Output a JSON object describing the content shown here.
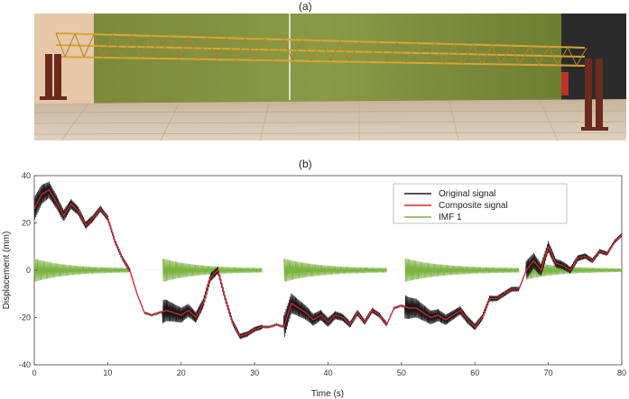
{
  "panels": {
    "a_label": "(a)",
    "b_label": "(b)"
  },
  "chart_data": {
    "type": "line",
    "title": "",
    "xlabel": "Time (s)",
    "ylabel": "Displacement (mm)",
    "xlim": [
      0,
      80
    ],
    "ylim": [
      -40,
      40
    ],
    "xticks": [
      "0",
      "10",
      "20",
      "30",
      "40",
      "50",
      "60",
      "70",
      "80"
    ],
    "yticks": [
      "40",
      "20",
      "0",
      "-20",
      "-40"
    ],
    "legend_position": "top-right",
    "colors": {
      "original": "#1a1a1a",
      "composite": "#d62728",
      "imf": "#7cb342"
    },
    "series": [
      {
        "name": "Original signal",
        "x": [
          0,
          1,
          2,
          3,
          4,
          5,
          6,
          7,
          8,
          9,
          10,
          11,
          12,
          13,
          14,
          15,
          16,
          17,
          18,
          19,
          20,
          21,
          22,
          23,
          24,
          25,
          26,
          27,
          28,
          29,
          30,
          31,
          32,
          33,
          34,
          35,
          36,
          37,
          38,
          39,
          40,
          41,
          42,
          43,
          44,
          45,
          46,
          47,
          48,
          49,
          50,
          51,
          52,
          53,
          54,
          55,
          56,
          57,
          58,
          59,
          60,
          61,
          62,
          63,
          64,
          65,
          66,
          67,
          68,
          69,
          70,
          71,
          72,
          73,
          74,
          75,
          76,
          77,
          78,
          79,
          80
        ],
        "values": [
          26,
          32,
          34,
          29,
          23,
          28,
          25,
          19,
          22,
          26,
          22,
          12,
          5,
          0,
          -10,
          -18,
          -19,
          -18,
          -17,
          -18,
          -19,
          -17,
          -20,
          -14,
          -3,
          0,
          -12,
          -22,
          -28,
          -27,
          -25,
          -24,
          -24,
          -23,
          -24,
          -14,
          -16,
          -18,
          -21,
          -19,
          -22,
          -19,
          -20,
          -23,
          -18,
          -22,
          -17,
          -19,
          -23,
          -16,
          -15,
          -16,
          -16,
          -18,
          -20,
          -19,
          -21,
          -19,
          -17,
          -21,
          -24,
          -20,
          -12,
          -12,
          -10,
          -8,
          -8,
          0,
          4,
          0,
          10,
          3,
          2,
          0,
          5,
          6,
          4,
          8,
          7,
          12,
          15
        ]
      },
      {
        "name": "Composite signal",
        "x": [
          0,
          1,
          2,
          3,
          4,
          5,
          6,
          7,
          8,
          9,
          10,
          11,
          12,
          13,
          14,
          15,
          16,
          17,
          18,
          19,
          20,
          21,
          22,
          23,
          24,
          25,
          26,
          27,
          28,
          29,
          30,
          31,
          32,
          33,
          34,
          35,
          36,
          37,
          38,
          39,
          40,
          41,
          42,
          43,
          44,
          45,
          46,
          47,
          48,
          49,
          50,
          51,
          52,
          53,
          54,
          55,
          56,
          57,
          58,
          59,
          60,
          61,
          62,
          63,
          64,
          65,
          66,
          67,
          68,
          69,
          70,
          71,
          72,
          73,
          74,
          75,
          76,
          77,
          78,
          79,
          80
        ],
        "values": [
          26,
          32,
          34,
          29,
          23,
          28,
          25,
          19,
          22,
          26,
          22,
          12,
          5,
          0,
          -10,
          -18,
          -19,
          -18,
          -17,
          -18,
          -19,
          -17,
          -20,
          -14,
          -3,
          0,
          -12,
          -22,
          -28,
          -27,
          -25,
          -24,
          -24,
          -23,
          -24,
          -14,
          -16,
          -18,
          -21,
          -19,
          -22,
          -19,
          -20,
          -23,
          -18,
          -22,
          -17,
          -19,
          -23,
          -16,
          -15,
          -16,
          -16,
          -18,
          -20,
          -19,
          -21,
          -19,
          -17,
          -21,
          -24,
          -20,
          -12,
          -12,
          -10,
          -8,
          -8,
          0,
          4,
          0,
          10,
          3,
          2,
          0,
          5,
          6,
          4,
          8,
          7,
          12,
          15
        ]
      },
      {
        "name": "IMF 1",
        "bursts": [
          {
            "start": 0,
            "end": 13,
            "amplitude": 5
          },
          {
            "start": 17.5,
            "end": 31,
            "amplitude": 5
          },
          {
            "start": 34,
            "end": 48,
            "amplitude": 5
          },
          {
            "start": 50.5,
            "end": 66,
            "amplitude": 5
          },
          {
            "start": 67,
            "end": 80,
            "amplitude": 4
          }
        ]
      }
    ]
  }
}
